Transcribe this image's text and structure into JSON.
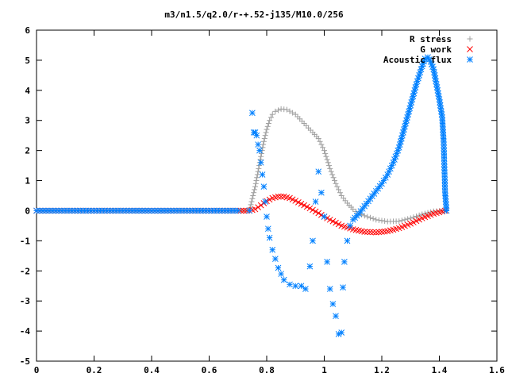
{
  "chart_data": {
    "type": "scatter",
    "title": "m3/n1.5/q2.0/r-+.52-j135/M10.0/256",
    "xlabel": "",
    "ylabel": "",
    "xlim": [
      0,
      1.6
    ],
    "ylim": [
      -5,
      6
    ],
    "xticks": [
      "0",
      "0.2",
      "0.4",
      "0.6",
      "0.8",
      "1",
      "1.2",
      "1.4",
      "1.6"
    ],
    "yticks": [
      "6",
      "5",
      "4",
      "3",
      "2",
      "1",
      "0",
      "-1",
      "-2",
      "-3",
      "-4",
      "-5"
    ],
    "grid": false,
    "legend_position": "top-right",
    "colors": {
      "r_stress": "#a0a0a0",
      "g_work": "#ff0000",
      "acoustic_flux": "#0080ff"
    },
    "series": [
      {
        "name": "R stress",
        "marker": "+",
        "color": "#a0a0a0",
        "points": [
          [
            0.0,
            0
          ],
          [
            0.1,
            0
          ],
          [
            0.2,
            0
          ],
          [
            0.3,
            0
          ],
          [
            0.4,
            0
          ],
          [
            0.5,
            0
          ],
          [
            0.6,
            0
          ],
          [
            0.7,
            0
          ],
          [
            0.74,
            0
          ],
          [
            0.75,
            0.4
          ],
          [
            0.76,
            0.8
          ],
          [
            0.77,
            1.3
          ],
          [
            0.78,
            1.8
          ],
          [
            0.79,
            2.3
          ],
          [
            0.8,
            2.7
          ],
          [
            0.81,
            3.0
          ],
          [
            0.82,
            3.2
          ],
          [
            0.83,
            3.3
          ],
          [
            0.85,
            3.38
          ],
          [
            0.87,
            3.36
          ],
          [
            0.9,
            3.2
          ],
          [
            0.93,
            2.9
          ],
          [
            0.96,
            2.6
          ],
          [
            0.98,
            2.4
          ],
          [
            1.0,
            2.0
          ],
          [
            1.02,
            1.4
          ],
          [
            1.04,
            0.9
          ],
          [
            1.06,
            0.5
          ],
          [
            1.08,
            0.25
          ],
          [
            1.1,
            0.05
          ],
          [
            1.12,
            -0.1
          ],
          [
            1.15,
            -0.2
          ],
          [
            1.18,
            -0.3
          ],
          [
            1.22,
            -0.36
          ],
          [
            1.26,
            -0.35
          ],
          [
            1.3,
            -0.25
          ],
          [
            1.34,
            -0.12
          ],
          [
            1.38,
            -0.02
          ],
          [
            1.42,
            0
          ]
        ]
      },
      {
        "name": "G work",
        "marker": "x",
        "color": "#ff0000",
        "points": [
          [
            0.0,
            0
          ],
          [
            0.1,
            0
          ],
          [
            0.2,
            0
          ],
          [
            0.3,
            0
          ],
          [
            0.4,
            0
          ],
          [
            0.5,
            0
          ],
          [
            0.6,
            0
          ],
          [
            0.7,
            0
          ],
          [
            0.74,
            0
          ],
          [
            0.76,
            0.05
          ],
          [
            0.78,
            0.18
          ],
          [
            0.8,
            0.32
          ],
          [
            0.82,
            0.42
          ],
          [
            0.84,
            0.47
          ],
          [
            0.86,
            0.47
          ],
          [
            0.88,
            0.42
          ],
          [
            0.9,
            0.33
          ],
          [
            0.92,
            0.23
          ],
          [
            0.95,
            0.08
          ],
          [
            0.98,
            -0.08
          ],
          [
            1.0,
            -0.2
          ],
          [
            1.03,
            -0.35
          ],
          [
            1.06,
            -0.5
          ],
          [
            1.1,
            -0.62
          ],
          [
            1.14,
            -0.7
          ],
          [
            1.18,
            -0.72
          ],
          [
            1.22,
            -0.68
          ],
          [
            1.26,
            -0.58
          ],
          [
            1.3,
            -0.43
          ],
          [
            1.34,
            -0.25
          ],
          [
            1.38,
            -0.1
          ],
          [
            1.42,
            0
          ]
        ]
      },
      {
        "name": "Acoustic flux",
        "marker": "*",
        "color": "#0080ff",
        "points": [
          [
            0.0,
            0
          ],
          [
            0.1,
            0
          ],
          [
            0.2,
            0
          ],
          [
            0.3,
            0
          ],
          [
            0.4,
            0
          ],
          [
            0.5,
            0
          ],
          [
            0.6,
            0
          ],
          [
            0.7,
            0
          ],
          [
            0.74,
            0
          ],
          [
            0.75,
            3.25
          ],
          [
            0.755,
            2.6
          ],
          [
            0.76,
            2.6
          ],
          [
            0.765,
            2.5
          ],
          [
            0.77,
            2.2
          ],
          [
            0.775,
            2.0
          ],
          [
            0.78,
            1.6
          ],
          [
            0.785,
            1.2
          ],
          [
            0.79,
            0.8
          ],
          [
            0.795,
            0.3
          ],
          [
            0.8,
            -0.2
          ],
          [
            0.805,
            -0.6
          ],
          [
            0.81,
            -0.9
          ],
          [
            0.82,
            -1.3
          ],
          [
            0.83,
            -1.6
          ],
          [
            0.84,
            -1.9
          ],
          [
            0.85,
            -2.1
          ],
          [
            0.86,
            -2.3
          ],
          [
            0.88,
            -2.45
          ],
          [
            0.9,
            -2.5
          ],
          [
            0.92,
            -2.5
          ],
          [
            0.935,
            -2.6
          ],
          [
            0.95,
            -1.85
          ],
          [
            0.96,
            -1.0
          ],
          [
            0.97,
            0.3
          ],
          [
            0.98,
            1.3
          ],
          [
            0.99,
            0.6
          ],
          [
            1.0,
            -0.2
          ],
          [
            1.01,
            -1.7
          ],
          [
            1.02,
            -2.6
          ],
          [
            1.03,
            -3.1
          ],
          [
            1.04,
            -3.5
          ],
          [
            1.05,
            -4.1
          ],
          [
            1.06,
            -4.05
          ],
          [
            1.065,
            -2.55
          ],
          [
            1.07,
            -1.7
          ],
          [
            1.08,
            -1.0
          ],
          [
            1.09,
            -0.5
          ],
          [
            1.1,
            -0.3
          ],
          [
            1.12,
            -0.1
          ],
          [
            1.14,
            0.15
          ],
          [
            1.16,
            0.4
          ],
          [
            1.18,
            0.65
          ],
          [
            1.2,
            0.9
          ],
          [
            1.22,
            1.2
          ],
          [
            1.24,
            1.6
          ],
          [
            1.26,
            2.1
          ],
          [
            1.28,
            2.8
          ],
          [
            1.3,
            3.5
          ],
          [
            1.32,
            4.2
          ],
          [
            1.34,
            4.8
          ],
          [
            1.35,
            5.05
          ],
          [
            1.36,
            5.1
          ],
          [
            1.37,
            4.95
          ],
          [
            1.38,
            4.7
          ],
          [
            1.39,
            4.2
          ],
          [
            1.4,
            3.7
          ],
          [
            1.41,
            3.1
          ],
          [
            1.415,
            2.3
          ],
          [
            1.42,
            0.6
          ],
          [
            1.425,
            0.0
          ]
        ]
      }
    ]
  }
}
